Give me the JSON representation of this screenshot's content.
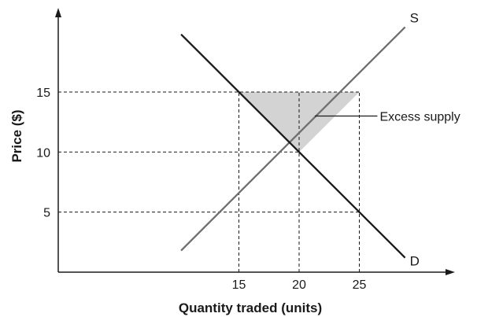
{
  "chart_data": {
    "type": "line",
    "xlabel": "Quantity traded (units)",
    "ylabel": "Price ($)",
    "x_ticks": [
      15,
      20,
      25
    ],
    "y_ticks": [
      5,
      10,
      15
    ],
    "series": [
      {
        "name": "S",
        "x": [
          10.2,
          28.8
        ],
        "y": [
          1.8,
          20.4
        ],
        "color": "#6f6f6f"
      },
      {
        "name": "D",
        "x": [
          10.2,
          28.8
        ],
        "y": [
          19.8,
          1.2
        ],
        "color": "#1a1a1a"
      }
    ],
    "shaded_region": {
      "label": "Excess supply",
      "polygon": [
        [
          15,
          15
        ],
        [
          25,
          15
        ],
        [
          20,
          10
        ]
      ],
      "color": "#d3d3d3"
    },
    "reference_lines": [
      {
        "axis": "y",
        "value": 15,
        "x_to": 25
      },
      {
        "axis": "y",
        "value": 10,
        "x_to": 20
      },
      {
        "axis": "y",
        "value": 5,
        "x_to": 25
      },
      {
        "axis": "x",
        "value": 15,
        "y_to": 15
      },
      {
        "axis": "x",
        "value": 20,
        "y_to": 15
      },
      {
        "axis": "x",
        "value": 25,
        "y_to": 15
      }
    ],
    "grid": false,
    "legend": "none"
  }
}
